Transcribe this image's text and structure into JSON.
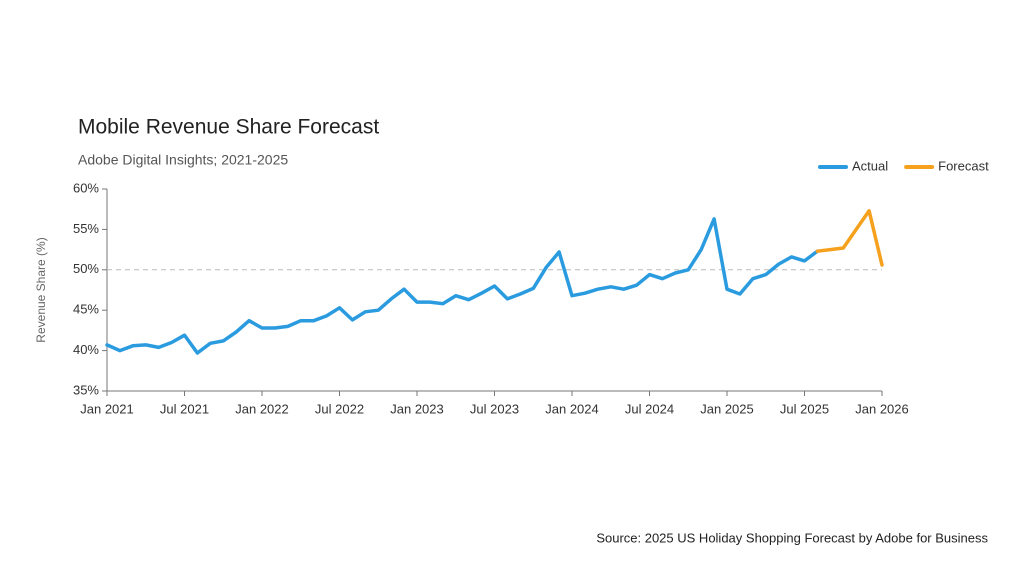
{
  "chart_data": {
    "type": "line",
    "title": "Mobile Revenue Share Forecast",
    "subtitle": "Adobe Digital Insights; 2021-2025",
    "y_label": "Revenue Share (%)",
    "source": "Source: 2025 US Holiday Shopping Forecast by Adobe for Business",
    "categories": [
      "Jan 2021",
      null,
      null,
      null,
      null,
      null,
      "Jul 2021",
      null,
      null,
      null,
      null,
      null,
      "Jan 2022",
      null,
      null,
      null,
      null,
      null,
      "Jul 2022",
      null,
      null,
      null,
      null,
      null,
      "Jan 2023",
      null,
      null,
      null,
      null,
      null,
      "Jul 2023",
      null,
      null,
      null,
      null,
      null,
      "Jan 2024",
      null,
      null,
      null,
      null,
      null,
      "Jul 2024",
      null,
      null,
      null,
      null,
      null,
      "Jan 2025",
      null,
      null,
      null,
      null,
      null,
      "Jul 2025",
      null,
      null,
      null,
      null,
      null,
      "Jan 2026"
    ],
    "series": [
      {
        "name": "Actual",
        "color": "#2b9be0",
        "values": [
          40.7,
          40.0,
          40.6,
          40.7,
          40.4,
          41.0,
          41.9,
          39.7,
          40.9,
          41.2,
          42.3,
          43.7,
          42.8,
          42.8,
          43.0,
          43.7,
          43.7,
          44.3,
          45.3,
          43.8,
          44.8,
          45.0,
          46.4,
          47.6,
          46.0,
          46.0,
          45.8,
          46.8,
          46.3,
          47.1,
          48.0,
          46.4,
          47.0,
          47.7,
          50.3,
          52.2,
          46.8,
          47.1,
          47.6,
          47.9,
          47.6,
          48.1,
          49.4,
          48.9,
          49.6,
          50.0,
          52.5,
          56.3,
          47.6,
          47.0,
          48.9,
          49.4,
          50.7,
          51.6,
          51.1,
          52.3,
          null,
          null,
          null,
          null,
          null
        ]
      },
      {
        "name": "Forecast",
        "color": "#f5a11d",
        "values": [
          null,
          null,
          null,
          null,
          null,
          null,
          null,
          null,
          null,
          null,
          null,
          null,
          null,
          null,
          null,
          null,
          null,
          null,
          null,
          null,
          null,
          null,
          null,
          null,
          null,
          null,
          null,
          null,
          null,
          null,
          null,
          null,
          null,
          null,
          null,
          null,
          null,
          null,
          null,
          null,
          null,
          null,
          null,
          null,
          null,
          null,
          null,
          null,
          null,
          null,
          null,
          null,
          null,
          null,
          null,
          52.3,
          52.5,
          52.7,
          55.0,
          57.3,
          50.6
        ]
      }
    ],
    "ylim": [
      35,
      60
    ],
    "yticks": [
      {
        "value": 35,
        "label": "35%"
      },
      {
        "value": 40,
        "label": "40%"
      },
      {
        "value": 45,
        "label": "45%"
      },
      {
        "value": 50,
        "label": "50%"
      },
      {
        "value": 55,
        "label": "55%"
      },
      {
        "value": 60,
        "label": "60%"
      }
    ],
    "reference_y": 50,
    "legend": "top-right"
  }
}
